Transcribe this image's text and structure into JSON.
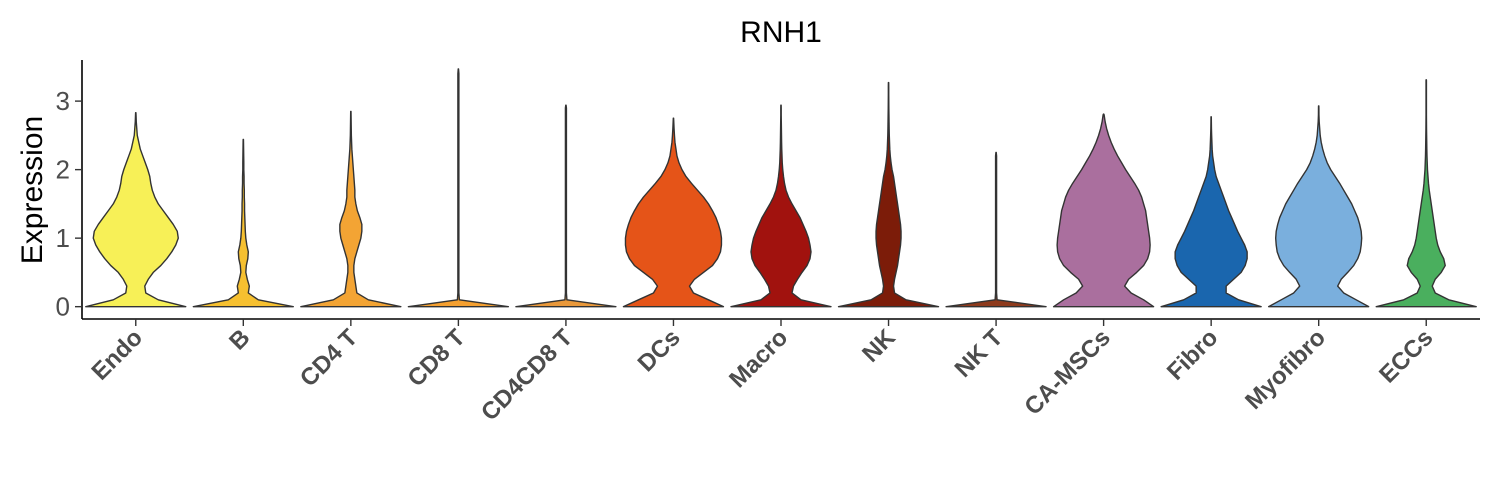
{
  "chart_data": {
    "type": "violin",
    "title": "RNH1",
    "ylabel": "Expression",
    "xlabel": "",
    "ylim": [
      -0.18,
      3.6
    ],
    "yticks": [
      0,
      1,
      2,
      3
    ],
    "grid": false,
    "legend": "none",
    "categories": [
      "Endo",
      "B",
      "CD4 T",
      "CD8 T",
      "CD4CD8 T",
      "DCs",
      "Macro",
      "NK",
      "NK T",
      "CA-MSCs",
      "Fibro",
      "Myofibro",
      "ECCs"
    ],
    "colors": [
      "#F7F057",
      "#F6C030",
      "#F3A434",
      "#F5A030",
      "#E9983A",
      "#E55418",
      "#A1120E",
      "#7C1C09",
      "#8E3A1C",
      "#AA6F9E",
      "#1A66AE",
      "#7AAFDD",
      "#4AAF5E"
    ],
    "max": [
      2.83,
      2.44,
      2.85,
      3.47,
      2.94,
      2.75,
      2.94,
      3.27,
      2.25,
      2.81,
      2.77,
      2.93,
      3.31
    ],
    "density_y": [
      0,
      0.1,
      0.2,
      0.3,
      0.4,
      0.5,
      0.6,
      0.7,
      0.8,
      0.9,
      1.0,
      1.1,
      1.2,
      1.3,
      1.4,
      1.5,
      1.6,
      1.7,
      1.8,
      1.9,
      2.0,
      2.1,
      2.2,
      2.3,
      2.4,
      2.5,
      2.6,
      2.7,
      2.8,
      2.9,
      3.0,
      3.1,
      3.2,
      3.3,
      3.4,
      3.5
    ],
    "density": [
      [
        1.0,
        0.45,
        0.2,
        0.18,
        0.25,
        0.35,
        0.5,
        0.62,
        0.72,
        0.8,
        0.85,
        0.83,
        0.75,
        0.65,
        0.55,
        0.45,
        0.38,
        0.33,
        0.3,
        0.28,
        0.24,
        0.19,
        0.14,
        0.09,
        0.06,
        0.03,
        0.02,
        0.01,
        0.005
      ],
      [
        1.0,
        0.3,
        0.1,
        0.12,
        0.08,
        0.05,
        0.06,
        0.09,
        0.1,
        0.07,
        0.05,
        0.04,
        0.035,
        0.03,
        0.025,
        0.025,
        0.02,
        0.02,
        0.015,
        0.015,
        0.01,
        0.01,
        0.008,
        0.006,
        0.004
      ],
      [
        1.0,
        0.35,
        0.12,
        0.1,
        0.08,
        0.06,
        0.06,
        0.08,
        0.12,
        0.16,
        0.2,
        0.22,
        0.22,
        0.18,
        0.13,
        0.1,
        0.08,
        0.08,
        0.07,
        0.06,
        0.05,
        0.04,
        0.03,
        0.02,
        0.015,
        0.01,
        0.008,
        0.006,
        0.004
      ],
      [
        1.0,
        0.02,
        0.01,
        0.01,
        0.01,
        0.01,
        0.01,
        0.01,
        0.01,
        0.01,
        0.01,
        0.01,
        0.01,
        0.01,
        0.01,
        0.01,
        0.01,
        0.01,
        0.01,
        0.01,
        0.01,
        0.01,
        0.01,
        0.01,
        0.01,
        0.01,
        0.01,
        0.01,
        0.01,
        0.01,
        0.01,
        0.01,
        0.01,
        0.01,
        0.01
      ],
      [
        1.0,
        0.02,
        0.01,
        0.01,
        0.01,
        0.01,
        0.01,
        0.01,
        0.01,
        0.01,
        0.01,
        0.01,
        0.01,
        0.01,
        0.01,
        0.01,
        0.01,
        0.01,
        0.01,
        0.01,
        0.01,
        0.01,
        0.01,
        0.01,
        0.01,
        0.01,
        0.01,
        0.01,
        0.01,
        0.01
      ],
      [
        1.0,
        0.7,
        0.4,
        0.32,
        0.42,
        0.6,
        0.78,
        0.88,
        0.94,
        0.96,
        0.96,
        0.94,
        0.9,
        0.85,
        0.78,
        0.7,
        0.6,
        0.48,
        0.36,
        0.25,
        0.17,
        0.11,
        0.07,
        0.05,
        0.03,
        0.02,
        0.012,
        0.006
      ],
      [
        1.0,
        0.4,
        0.22,
        0.25,
        0.33,
        0.42,
        0.52,
        0.58,
        0.6,
        0.58,
        0.55,
        0.5,
        0.44,
        0.38,
        0.3,
        0.22,
        0.15,
        0.1,
        0.07,
        0.05,
        0.035,
        0.025,
        0.02,
        0.015,
        0.012,
        0.01,
        0.008,
        0.006,
        0.004,
        0.002
      ],
      [
        1.0,
        0.35,
        0.12,
        0.1,
        0.12,
        0.15,
        0.18,
        0.2,
        0.22,
        0.24,
        0.25,
        0.25,
        0.24,
        0.22,
        0.2,
        0.18,
        0.16,
        0.14,
        0.12,
        0.1,
        0.07,
        0.05,
        0.035,
        0.025,
        0.02,
        0.015,
        0.012,
        0.01,
        0.008,
        0.006,
        0.005,
        0.004,
        0.003
      ],
      [
        1.0,
        0.02,
        0.01,
        0.01,
        0.01,
        0.01,
        0.01,
        0.01,
        0.01,
        0.01,
        0.01,
        0.01,
        0.01,
        0.01,
        0.01,
        0.01,
        0.01,
        0.01,
        0.01,
        0.01,
        0.01,
        0.01,
        0.01
      ],
      [
        1.0,
        0.8,
        0.55,
        0.42,
        0.5,
        0.66,
        0.8,
        0.88,
        0.92,
        0.93,
        0.92,
        0.9,
        0.88,
        0.86,
        0.84,
        0.8,
        0.76,
        0.7,
        0.62,
        0.53,
        0.44,
        0.36,
        0.28,
        0.21,
        0.15,
        0.1,
        0.06,
        0.03,
        0.01
      ],
      [
        1.0,
        0.55,
        0.3,
        0.3,
        0.45,
        0.6,
        0.68,
        0.72,
        0.72,
        0.67,
        0.6,
        0.53,
        0.47,
        0.41,
        0.35,
        0.3,
        0.25,
        0.2,
        0.15,
        0.1,
        0.07,
        0.05,
        0.03,
        0.02,
        0.015,
        0.01,
        0.006,
        0.003
      ],
      [
        1.0,
        0.75,
        0.5,
        0.38,
        0.45,
        0.58,
        0.7,
        0.78,
        0.83,
        0.85,
        0.86,
        0.85,
        0.82,
        0.78,
        0.72,
        0.66,
        0.58,
        0.5,
        0.42,
        0.33,
        0.24,
        0.17,
        0.12,
        0.08,
        0.05,
        0.03,
        0.02,
        0.01,
        0.005,
        0.003
      ],
      [
        1.0,
        0.45,
        0.18,
        0.12,
        0.18,
        0.3,
        0.38,
        0.35,
        0.28,
        0.23,
        0.2,
        0.18,
        0.16,
        0.14,
        0.12,
        0.1,
        0.08,
        0.06,
        0.045,
        0.035,
        0.025,
        0.02,
        0.015,
        0.012,
        0.01,
        0.008,
        0.006,
        0.005,
        0.004,
        0.003,
        0.002,
        0.002,
        0.001,
        0.001
      ]
    ]
  }
}
